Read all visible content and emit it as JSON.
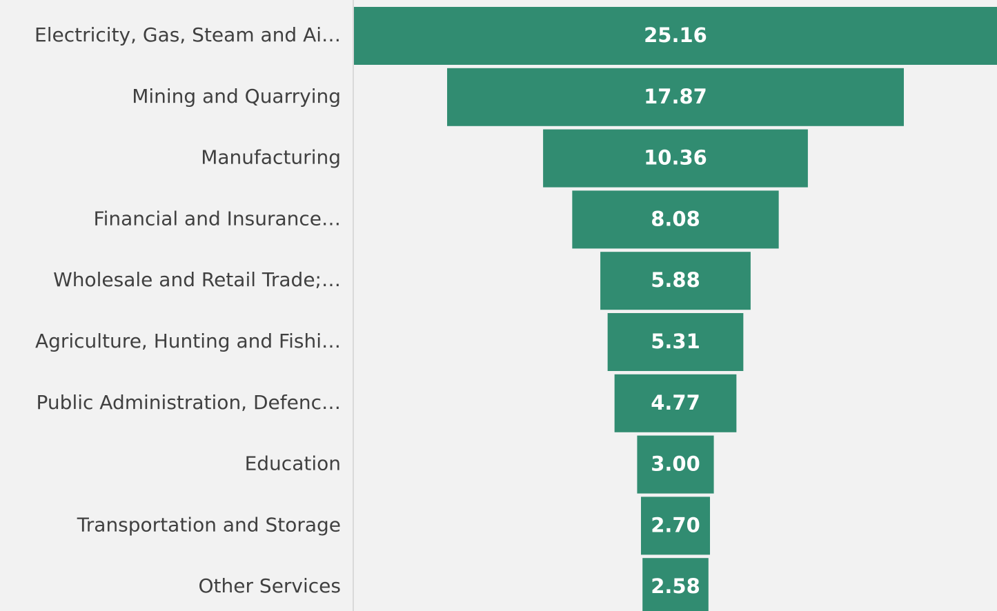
{
  "chart_data": {
    "type": "funnel",
    "color": "#318c71",
    "categories": [
      "Electricity, Gas, Steam and Ai…",
      "Mining and Quarrying",
      "Manufacturing",
      "Financial and Insurance…",
      "Wholesale and Retail Trade;…",
      "Agriculture, Hunting and Fishi…",
      "Public Administration, Defenc…",
      "Education",
      "Transportation and Storage",
      "Other Services"
    ],
    "values": [
      25.16,
      17.87,
      10.36,
      8.08,
      5.88,
      5.31,
      4.77,
      3.0,
      2.7,
      2.58
    ],
    "value_labels": [
      "25.16",
      "17.87",
      "10.36",
      "8.08",
      "5.88",
      "5.31",
      "4.77",
      "3.00",
      "2.70",
      "2.58"
    ]
  }
}
